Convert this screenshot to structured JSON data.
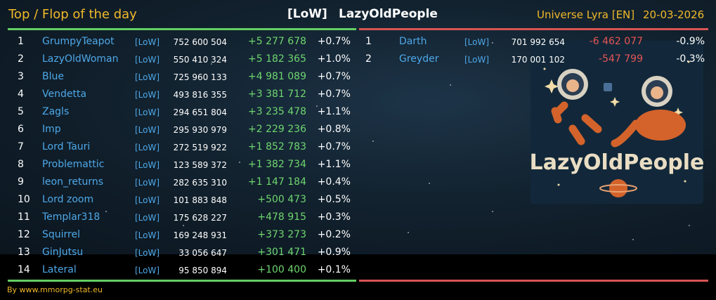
{
  "header": {
    "title": "Top / Flop of the day",
    "tag": "[LoW]",
    "alliance": "LazyOldPeople",
    "universe": "Universe Lyra [EN]",
    "date": "20-03-2026"
  },
  "top": [
    {
      "rank": "1",
      "name": "GrumpyTeapot",
      "tag": "[LoW]",
      "score": "752 600 504",
      "change": "+5 277 678",
      "pct": "+0.7%"
    },
    {
      "rank": "2",
      "name": "LazyOldWoman",
      "tag": "[LoW]",
      "score": "550 410 324",
      "change": "+5 182 365",
      "pct": "+1.0%"
    },
    {
      "rank": "3",
      "name": "Blue",
      "tag": "[LoW]",
      "score": "725 960 133",
      "change": "+4 981 089",
      "pct": "+0.7%"
    },
    {
      "rank": "4",
      "name": "Vendetta",
      "tag": "[LoW]",
      "score": "493 816 355",
      "change": "+3 381 712",
      "pct": "+0.7%"
    },
    {
      "rank": "5",
      "name": "Zagls",
      "tag": "[LoW]",
      "score": "294 651 804",
      "change": "+3 235 478",
      "pct": "+1.1%"
    },
    {
      "rank": "6",
      "name": "Imp",
      "tag": "[LoW]",
      "score": "295 930 979",
      "change": "+2 229 236",
      "pct": "+0.8%"
    },
    {
      "rank": "7",
      "name": "Lord Tauri",
      "tag": "[LoW]",
      "score": "272 519 922",
      "change": "+1 852 783",
      "pct": "+0.7%"
    },
    {
      "rank": "8",
      "name": "Problemattic",
      "tag": "[LoW]",
      "score": "123 589 372",
      "change": "+1 382 734",
      "pct": "+1.1%"
    },
    {
      "rank": "9",
      "name": "leon_returns",
      "tag": "[LoW]",
      "score": "282 635 310",
      "change": "+1 147 184",
      "pct": "+0.4%"
    },
    {
      "rank": "10",
      "name": "Lord zoom",
      "tag": "[LoW]",
      "score": "101 883 848",
      "change": "+500 473",
      "pct": "+0.5%"
    },
    {
      "rank": "11",
      "name": "Templar318",
      "tag": "[LoW]",
      "score": "175 628 227",
      "change": "+478 915",
      "pct": "+0.3%"
    },
    {
      "rank": "12",
      "name": "Squirrel",
      "tag": "[LoW]",
      "score": "169 248 931",
      "change": "+373 273",
      "pct": "+0.2%"
    },
    {
      "rank": "13",
      "name": "GinJutsu",
      "tag": "[LoW]",
      "score": "33 056 647",
      "change": "+301 471",
      "pct": "+0.9%"
    },
    {
      "rank": "14",
      "name": "Lateral",
      "tag": "[LoW]",
      "score": "95 850 894",
      "change": "+100 400",
      "pct": "+0.1%"
    }
  ],
  "flop": [
    {
      "rank": "1",
      "name": "Darth",
      "tag": "[LoW]",
      "score": "701 992 654",
      "change": "-6 462 077",
      "pct": "-0.9%"
    },
    {
      "rank": "2",
      "name": "Greyder",
      "tag": "[LoW]",
      "score": "170 001 102",
      "change": "-547 799",
      "pct": "-0.3%"
    }
  ],
  "logo": {
    "text": "LazyOldPeople"
  },
  "footer": {
    "credit": "By www.mmorpg-stat.eu"
  },
  "colors": {
    "accent": "#f1b92a",
    "gain": "#6fd66f",
    "loss": "#e65555",
    "name": "#4ea8e8"
  }
}
